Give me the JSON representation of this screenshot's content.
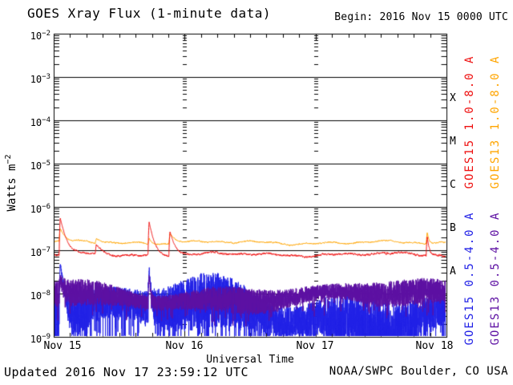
{
  "header": {
    "title": "GOES Xray Flux (1-minute data)",
    "begin": "Begin:  2016 Nov 15 0000 UTC"
  },
  "footer": {
    "updated": "Updated 2016 Nov 17 23:59:12 UTC",
    "credit": "NOAA/SWPC Boulder, CO USA"
  },
  "chart_data": {
    "type": "line",
    "title": "GOES Xray Flux (1-minute data)",
    "begin": "2016 Nov 15 0000 UTC",
    "xlabel": "Universal Time",
    "ylabel": "Watts m^-2",
    "ylabel_base": "Watts m",
    "ylabel_exp": "−2",
    "yscale": "log",
    "ylim": [
      1e-09,
      0.01
    ],
    "y_tick_exponents": [
      -2,
      -3,
      -4,
      -5,
      -6,
      -7,
      -8,
      -9
    ],
    "x_ticks": [
      "Nov 15",
      "Nov 16",
      "Nov 17",
      "Nov 18"
    ],
    "x_span_days": 3,
    "grid": {
      "horizontal": "solid line each decade",
      "vertical": "dotted line at each day boundary",
      "minor_ticks": "log minors on left/right, 3-hour ticks top/bottom"
    },
    "flare_scale": [
      {
        "label": "X",
        "log10_center": -3.5
      },
      {
        "label": "M",
        "log10_center": -4.5
      },
      {
        "label": "C",
        "log10_center": -5.5
      },
      {
        "label": "B",
        "log10_center": -6.5
      },
      {
        "label": "A",
        "log10_center": -7.5
      }
    ],
    "series": [
      {
        "name": "GOES15 1.0-8.0 A",
        "color": "#ee1010",
        "kind": "smooth",
        "baseline": 8e-08,
        "noise": 0.045,
        "spikes": [
          {
            "t_days": 0.05,
            "peak": 5.5e-07,
            "decay_days": 0.03
          },
          {
            "t_days": 0.325,
            "peak": 1.35e-07,
            "decay_days": 0.04
          },
          {
            "t_days": 0.729,
            "peak": 4.5e-07,
            "decay_days": 0.025
          },
          {
            "t_days": 0.888,
            "peak": 2.7e-07,
            "decay_days": 0.03
          },
          {
            "t_days": 2.853,
            "peak": 2.1e-07,
            "decay_days": 0.012
          }
        ]
      },
      {
        "name": "GOES13 1.0-8.0 A",
        "color": "#ffa500",
        "kind": "smooth",
        "baseline": 1.5e-07,
        "noise": 0.03,
        "spikes": [
          {
            "t_days": 0.05,
            "peak": 3.2e-07,
            "decay_days": 0.03
          },
          {
            "t_days": 0.325,
            "peak": 1.9e-07,
            "decay_days": 0.04
          },
          {
            "t_days": 0.729,
            "peak": 1.9e-07,
            "decay_days": 0.02
          },
          {
            "t_days": 0.888,
            "peak": 2.4e-07,
            "decay_days": 0.046
          },
          {
            "t_days": 2.853,
            "peak": 2.6e-07,
            "decay_days": 0.012
          }
        ]
      },
      {
        "name": "GOES15 0.5-4.0 A",
        "color": "#2121e6",
        "kind": "noisy",
        "log_center": -8.45,
        "log_amp": 0.5,
        "dropout_depth": 0.55,
        "dropout_p": 0.1,
        "spikes": [
          {
            "t_days": 0.05,
            "peak": 4.6e-08,
            "decay_days": 0.02
          },
          {
            "t_days": 0.729,
            "peak": 3.6e-08,
            "decay_days": 0.01
          }
        ]
      },
      {
        "name": "GOES13 0.5-4.0 A",
        "color": "#5c0fa2",
        "kind": "noisy",
        "log_center": -8.07,
        "log_amp": 0.24,
        "dropout_depth": 0.2,
        "dropout_p": 0.05,
        "spikes": [
          {
            "t_days": 0.05,
            "peak": 2.2e-08,
            "decay_days": 0.018
          },
          {
            "t_days": 0.729,
            "peak": 2.6e-08,
            "decay_days": 0.008
          }
        ]
      }
    ]
  },
  "right_legend": [
    {
      "text": "GOES15 1.0-8.0 A",
      "color": "#ee1010",
      "column": "inner",
      "half": "top"
    },
    {
      "text": "GOES13 1.0-8.0 A",
      "color": "#ffa500",
      "column": "outer",
      "half": "top"
    },
    {
      "text": "GOES15 0.5-4.0 A",
      "color": "#2121e6",
      "column": "inner",
      "half": "bottom"
    },
    {
      "text": "GOES13 0.5-4.0 A",
      "color": "#5c0fa2",
      "column": "outer",
      "half": "bottom"
    }
  ]
}
